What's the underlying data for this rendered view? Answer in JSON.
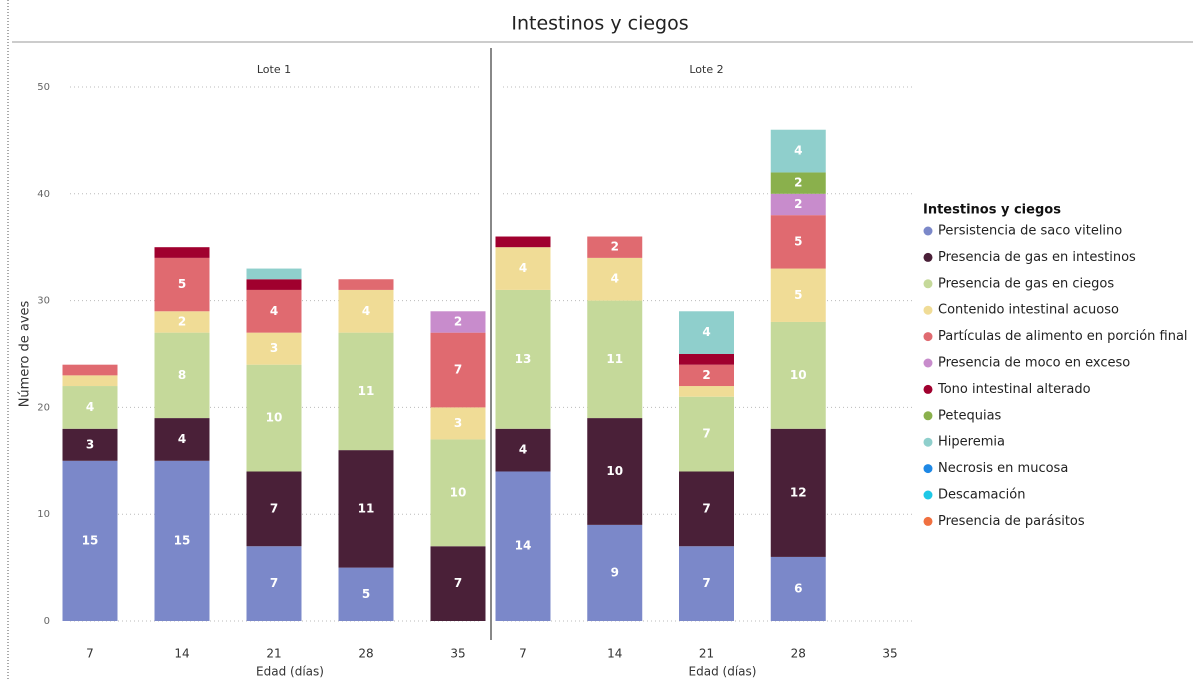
{
  "title": "Intestinos y ciegos",
  "legend_title": "Intestinos y ciegos",
  "chart_data": [
    {
      "type": "stacked-bar",
      "title": "Lote 1",
      "x_label": "Edad (días)",
      "y_label": "Número de aves",
      "categories": [
        "7",
        "14",
        "21",
        "28",
        "35"
      ],
      "ylim": [
        0,
        50
      ],
      "yticks": [
        0,
        10,
        20,
        30,
        40,
        50
      ],
      "grid": true,
      "series": [
        {
          "name": "Persistencia de saco vitelino",
          "color": "#7b88c9",
          "values": [
            15,
            15,
            7,
            5,
            null
          ]
        },
        {
          "name": "Presencia de gas en intestinos",
          "color": "#4a2038",
          "values": [
            3,
            4,
            7,
            11,
            7
          ]
        },
        {
          "name": "Presencia de gas en ciegos",
          "color": "#c5d99a",
          "values": [
            4,
            8,
            10,
            11,
            10
          ]
        },
        {
          "name": "Contenido intestinal acuoso",
          "color": "#f0dc96",
          "values": [
            1,
            2,
            3,
            4,
            3
          ]
        },
        {
          "name": "Partículas de alimento en porción final",
          "color": "#e06a70",
          "values": [
            1,
            5,
            4,
            1,
            7
          ]
        },
        {
          "name": "Presencia de moco en exceso",
          "color": "#c88ccc",
          "values": [
            null,
            null,
            null,
            null,
            2
          ]
        },
        {
          "name": "Tono intestinal alterado",
          "color": "#a0002e",
          "values": [
            null,
            1,
            1,
            null,
            null
          ]
        },
        {
          "name": "Petequias",
          "color": "#8ab04c",
          "values": [
            null,
            null,
            null,
            null,
            null
          ]
        },
        {
          "name": "Hiperemia",
          "color": "#8fcfcc",
          "values": [
            null,
            null,
            1,
            null,
            null
          ]
        },
        {
          "name": "Necrosis en mucosa",
          "color": "#1e88e5",
          "values": [
            null,
            null,
            null,
            null,
            null
          ]
        },
        {
          "name": "Descamación",
          "color": "#1ec8e6",
          "values": [
            null,
            null,
            null,
            null,
            null
          ]
        },
        {
          "name": "Presencia de parásitos",
          "color": "#f07040",
          "values": [
            null,
            null,
            null,
            null,
            null
          ]
        }
      ]
    },
    {
      "type": "stacked-bar",
      "title": "Lote 2",
      "x_label": "Edad (días)",
      "categories": [
        "7",
        "14",
        "21",
        "28",
        "35"
      ],
      "ylim": [
        0,
        50
      ],
      "yticks": [
        0,
        10,
        20,
        30,
        40,
        50
      ],
      "grid": true,
      "series": [
        {
          "name": "Persistencia de saco vitelino",
          "color": "#7b88c9",
          "values": [
            14,
            9,
            7,
            6,
            null
          ]
        },
        {
          "name": "Presencia de gas en intestinos",
          "color": "#4a2038",
          "values": [
            4,
            10,
            7,
            12,
            null
          ]
        },
        {
          "name": "Presencia de gas en ciegos",
          "color": "#c5d99a",
          "values": [
            13,
            11,
            7,
            10,
            null
          ]
        },
        {
          "name": "Contenido intestinal acuoso",
          "color": "#f0dc96",
          "values": [
            4,
            4,
            1,
            5,
            null
          ]
        },
        {
          "name": "Partículas de alimento en porción final",
          "color": "#e06a70",
          "values": [
            null,
            2,
            2,
            5,
            null
          ]
        },
        {
          "name": "Presencia de moco en exceso",
          "color": "#c88ccc",
          "values": [
            null,
            null,
            null,
            2,
            null
          ]
        },
        {
          "name": "Tono intestinal alterado",
          "color": "#a0002e",
          "values": [
            1,
            null,
            1,
            null,
            null
          ]
        },
        {
          "name": "Petequias",
          "color": "#8ab04c",
          "values": [
            null,
            null,
            null,
            2,
            null
          ]
        },
        {
          "name": "Hiperemia",
          "color": "#8fcfcc",
          "values": [
            null,
            null,
            4,
            4,
            null
          ]
        },
        {
          "name": "Necrosis en mucosa",
          "color": "#1e88e5",
          "values": [
            null,
            null,
            null,
            null,
            null
          ]
        },
        {
          "name": "Descamación",
          "color": "#1ec8e6",
          "values": [
            null,
            null,
            null,
            null,
            null
          ]
        },
        {
          "name": "Presencia de parásitos",
          "color": "#f07040",
          "values": [
            null,
            null,
            null,
            null,
            null
          ]
        }
      ]
    }
  ]
}
